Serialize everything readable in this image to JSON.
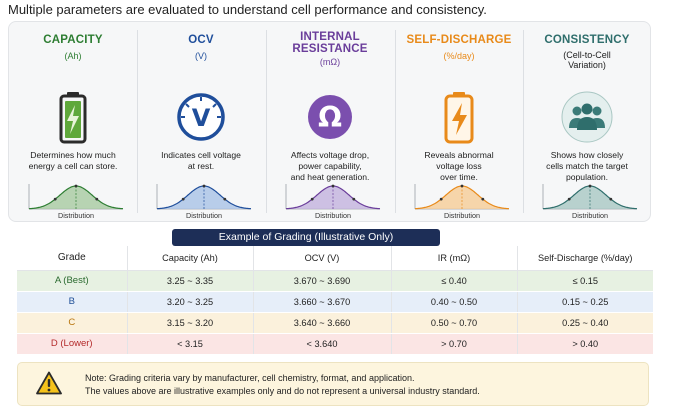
{
  "heading": "Multiple parameters are evaluated to understand cell performance and consistency.",
  "parameters": [
    {
      "title": "CAPACITY",
      "unit": "(Ah)",
      "description": [
        "Determines how much",
        "energy a cell can store."
      ],
      "icon": "battery-charging-icon",
      "color": "#2d7d32",
      "fill": "#a7c9a0",
      "dist_label": "Distribution"
    },
    {
      "title": "OCV",
      "unit": "(V)",
      "description": [
        "Indicates cell voltage",
        "at rest."
      ],
      "icon": "voltmeter-icon",
      "color": "#1f4e9b",
      "fill": "#a9c2e6",
      "dist_label": "Distribution"
    },
    {
      "title": "INTERNAL\nRESISTANCE",
      "unit": "(mΩ)",
      "description": [
        "Affects voltage drop,",
        "power capability,",
        "and heat generation."
      ],
      "icon": "ohm-icon",
      "color": "#6a3d9a",
      "fill": "#c3b2dd",
      "dist_label": "Distribution"
    },
    {
      "title": "SELF-DISCHARGE",
      "unit": "(%/day)",
      "description": [
        "Reveals abnormal",
        "voltage loss",
        "over time."
      ],
      "icon": "battery-bolt-icon",
      "color": "#e88a1a",
      "fill": "#f6cc96",
      "dist_label": "Distribution"
    },
    {
      "title": "CONSISTENCY",
      "unit": "(Cell-to-Cell\nVariation)",
      "description": [
        "Shows how closely",
        "cells match the target",
        "population."
      ],
      "icon": "group-icon",
      "color": "#2f6e6c",
      "fill": "#a9c7c3",
      "dist_label": "Distribution"
    }
  ],
  "grading": {
    "title": "Example of Grading (Illustrative Only)",
    "headers": [
      "Grade",
      "Capacity (Ah)",
      "OCV (V)",
      "IR (mΩ)",
      "Self-Discharge (%/day)"
    ],
    "rows": [
      [
        "A (Best)",
        "3.25 ~ 3.35",
        "3.670 ~ 3.690",
        "≤ 0.40",
        "≤ 0.15"
      ],
      [
        "B",
        "3.20 ~ 3.25",
        "3.660 ~ 3.670",
        "0.40 ~ 0.50",
        "0.15 ~ 0.25"
      ],
      [
        "C",
        "3.15 ~ 3.20",
        "3.640 ~ 3.660",
        "0.50 ~ 0.70",
        "0.25 ~ 0.40"
      ],
      [
        "D (Lower)",
        "< 3.15",
        "< 3.640",
        "> 0.70",
        "> 0.40"
      ]
    ]
  },
  "note": {
    "line1": "Note: Grading criteria vary by manufacturer, cell chemistry, format, and application.",
    "line2": "The values above are illustrative examples only and do not represent a universal industry standard."
  }
}
